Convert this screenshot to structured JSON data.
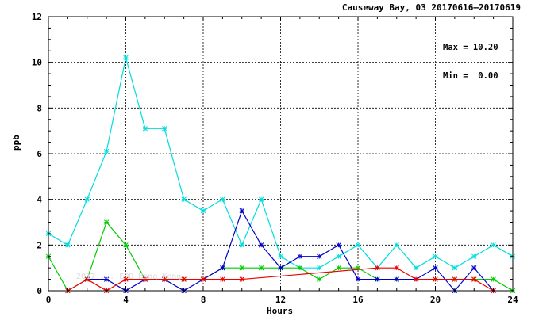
{
  "header": {
    "title": "Causeway Bay, 03 20170616–20170619"
  },
  "stats": {
    "max_label": "Max = 10.20",
    "min_label": "Min =  0.00"
  },
  "watermark": {
    "text": "2017 ... EPD Hong Kong"
  },
  "chart_data": {
    "type": "line",
    "title": "Causeway Bay, 03 20170616–20170619",
    "xlabel": "Hours",
    "ylabel": "ppb",
    "xlim": [
      0,
      24
    ],
    "ylim": [
      0,
      12
    ],
    "xticks": [
      0,
      4,
      8,
      12,
      16,
      20,
      24
    ],
    "yticks": [
      0,
      2,
      4,
      6,
      8,
      10,
      12
    ],
    "grid": true,
    "series": [
      {
        "color": "#00dddd",
        "x": [
          0,
          1,
          2,
          3,
          4,
          5,
          6,
          7,
          8,
          9,
          10,
          11,
          12,
          13,
          14,
          15,
          16,
          17,
          18,
          19,
          20,
          21,
          22,
          23,
          24
        ],
        "y": [
          2.5,
          2.0,
          4.0,
          6.1,
          10.2,
          7.1,
          7.1,
          4.0,
          3.5,
          4.0,
          2.0,
          4.0,
          1.5,
          1.0,
          1.0,
          1.5,
          2.0,
          1.0,
          2.0,
          1.0,
          1.5,
          1.0,
          1.5,
          2.0,
          1.5
        ]
      },
      {
        "color": "#00cc00",
        "x": [
          0,
          1,
          2,
          3,
          4,
          5,
          6,
          7,
          8,
          9,
          10,
          11,
          12,
          13,
          14,
          15,
          16,
          17,
          18,
          19,
          20,
          21,
          22,
          23,
          24
        ],
        "y": [
          1.5,
          0.0,
          0.5,
          3.0,
          2.0,
          0.5,
          0.5,
          0.5,
          0.5,
          1.0,
          1.0,
          1.0,
          1.0,
          1.0,
          0.5,
          1.0,
          1.0,
          0.5,
          0.5,
          0.5,
          0.5,
          0.5,
          0.5,
          0.5,
          0.0
        ]
      },
      {
        "color": "#0000cc",
        "x": [
          2,
          3,
          4,
          5,
          6,
          7,
          8,
          9,
          10,
          11,
          12,
          13,
          14,
          15,
          16,
          17,
          18,
          19,
          20,
          21,
          22,
          23
        ],
        "y": [
          0.5,
          0.5,
          0.0,
          0.5,
          0.5,
          0.0,
          0.5,
          1.0,
          3.5,
          2.0,
          1.0,
          1.5,
          1.5,
          2.0,
          0.5,
          0.5,
          0.5,
          0.5,
          1.0,
          0.0,
          1.0,
          0.0
        ]
      },
      {
        "color": "#ee0000",
        "x": [
          1,
          2,
          3,
          4,
          5,
          6,
          7,
          8,
          9,
          10,
          17,
          18,
          19,
          20,
          21,
          22,
          23
        ],
        "y": [
          0.0,
          0.5,
          0.0,
          0.5,
          0.5,
          0.5,
          0.5,
          0.5,
          0.5,
          0.5,
          1.0,
          1.0,
          0.5,
          0.5,
          0.5,
          0.5,
          0.0
        ]
      }
    ]
  }
}
